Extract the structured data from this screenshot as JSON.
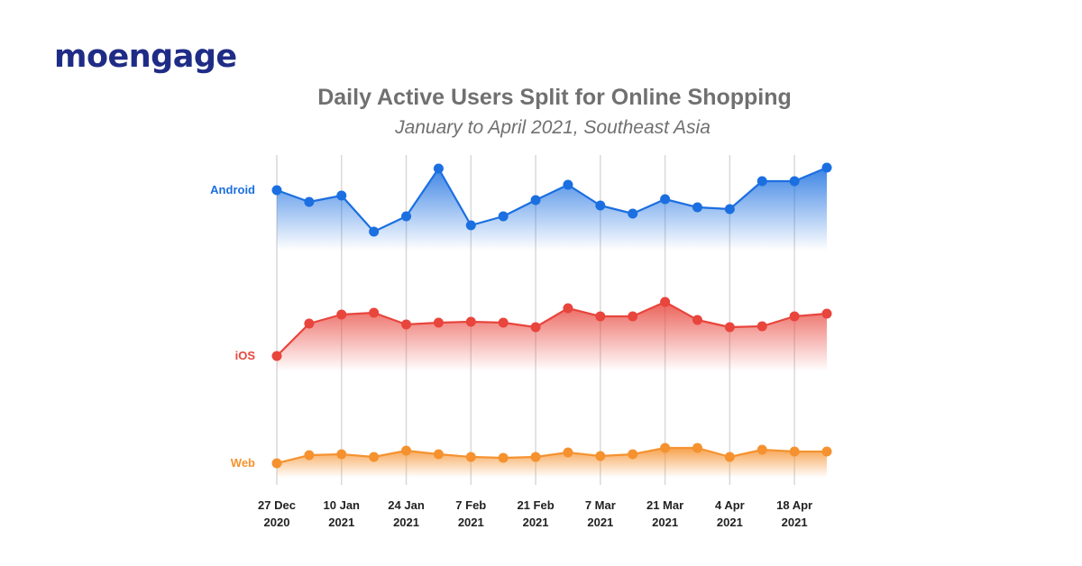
{
  "brand": {
    "logo_text": "moengage",
    "logo_color": "#1f2c86"
  },
  "chart_data": {
    "type": "area",
    "title": "Daily Active Users Split for Online Shopping",
    "subtitle": "January to April 2021, Southeast Asia",
    "x": [
      "27 Dec 2020",
      "3 Jan 2021",
      "10 Jan 2021",
      "17 Jan 2021",
      "24 Jan 2021",
      "31 Jan 2021",
      "7 Feb 2021",
      "14 Feb 2021",
      "21 Feb 2021",
      "28 Feb 2021",
      "7 Mar 2021",
      "14 Mar 2021",
      "21 Mar 2021",
      "28 Mar 2021",
      "4 Apr 2021",
      "11 Apr 2021",
      "18 Apr 2021",
      "25 Apr 2021"
    ],
    "x_ticks": [
      {
        "line1": "27 Dec",
        "line2": "2020"
      },
      {
        "line1": "10 Jan",
        "line2": "2021"
      },
      {
        "line1": "24 Jan",
        "line2": "2021"
      },
      {
        "line1": "7 Feb",
        "line2": "2021"
      },
      {
        "line1": "21 Feb",
        "line2": "2021"
      },
      {
        "line1": "7 Mar",
        "line2": "2021"
      },
      {
        "line1": "21 Mar",
        "line2": "2021"
      },
      {
        "line1": "4 Apr",
        "line2": "2021"
      },
      {
        "line1": "18 Apr",
        "line2": "2021"
      }
    ],
    "tick_every": 2,
    "y_axis_shown": false,
    "grid": "vertical",
    "series": [
      {
        "name": "Android",
        "color": "#1b6fe0",
        "values": [
          211,
          224,
          217,
          257,
          240,
          187,
          250,
          240,
          222,
          205,
          228,
          237,
          221,
          230,
          232,
          201,
          201,
          186
        ]
      },
      {
        "name": "iOS",
        "color": "#e8453c",
        "values": [
          395,
          359,
          349,
          347,
          360,
          358,
          357,
          358,
          363,
          342,
          351,
          351,
          335,
          355,
          363,
          362,
          351,
          348
        ]
      },
      {
        "name": "Web",
        "color": "#f5922f",
        "values": [
          514,
          505,
          504,
          507,
          500,
          504,
          507,
          508,
          507,
          502,
          506,
          504,
          497,
          497,
          507,
          499,
          501,
          501
        ]
      }
    ]
  }
}
